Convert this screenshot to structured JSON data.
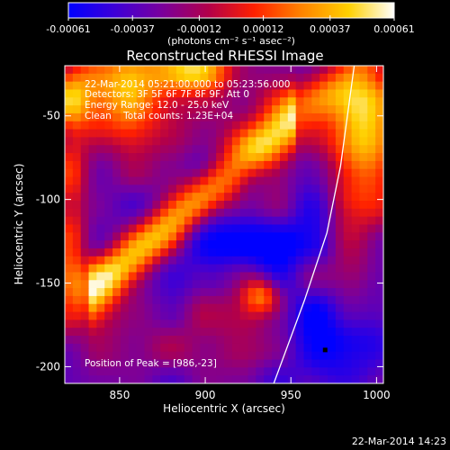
{
  "colorbar": {
    "tick_labels": [
      "-0.00061",
      "-0.00037",
      "-0.00012",
      "0.00012",
      "0.00037",
      "0.00061"
    ],
    "tick_values": [
      -0.00061,
      -0.00037,
      -0.00012,
      0.00012,
      0.00037,
      0.00061
    ],
    "range": [
      -0.00061,
      0.00061
    ],
    "unit_label": "(photons cm⁻² s⁻¹ asec⁻²)",
    "colors": [
      "#0000ff",
      "#3c00d8",
      "#7700a0",
      "#b2004a",
      "#ff2000",
      "#ff8000",
      "#ffd000",
      "#ffffff"
    ]
  },
  "chart_data": {
    "type": "heatmap",
    "title": "Reconstructed RHESSI Image",
    "xlabel": "Heliocentric X (arcsec)",
    "ylabel": "Heliocentric Y (arcsec)",
    "xlim": [
      818,
      1004
    ],
    "ylim": [
      -210,
      -20
    ],
    "xticks": [
      850,
      900,
      950,
      1000
    ],
    "yticks": [
      -50,
      -100,
      -150,
      -200
    ],
    "info_lines": [
      "22-Mar-2014 05:21:00.000 to 05:23:56.000",
      "Detectors: 3F 5F 6F 7F 8F 9F, Att 0",
      "Energy Range: 12.0 - 25.0 keV",
      "Clean    Total counts: 1.23E+04"
    ],
    "peak_label": "Position of Peak = [986,-23]",
    "peak_position": [
      986,
      -23
    ],
    "limb": [
      [
        987,
        -20
      ],
      [
        979,
        -80
      ],
      [
        971,
        -120
      ],
      [
        958,
        -160
      ],
      [
        940,
        -210
      ]
    ],
    "marker": [
      970,
      -190
    ]
  },
  "timestamp": "22-Mar-2014 14:23"
}
